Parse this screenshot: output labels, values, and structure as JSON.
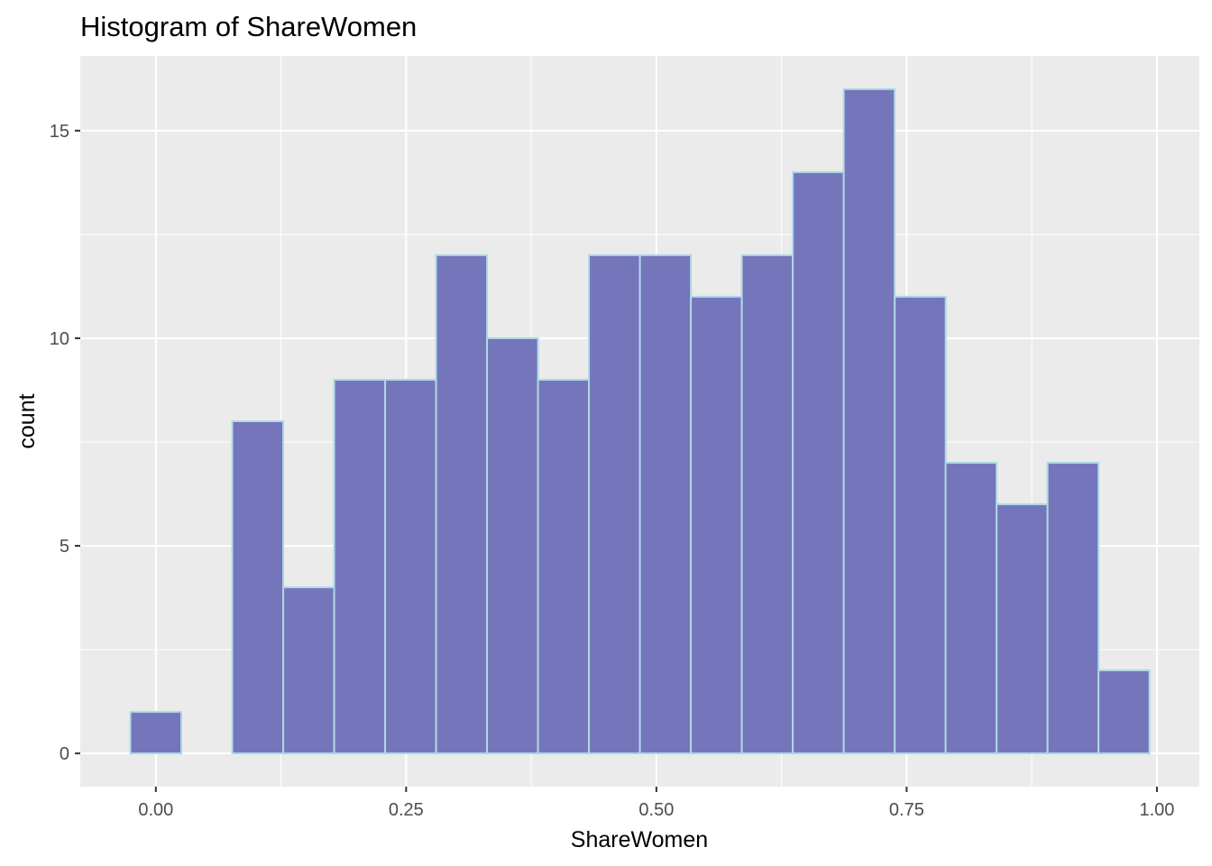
{
  "chart_data": {
    "type": "bar",
    "subtype": "histogram",
    "title": "Histogram of ShareWomen",
    "xlabel": "ShareWomen",
    "ylabel": "count",
    "bin_width": 0.0509,
    "bins": [
      {
        "center": 0.0,
        "count": 1
      },
      {
        "center": 0.0509,
        "count": 0
      },
      {
        "center": 0.1018,
        "count": 8
      },
      {
        "center": 0.1527,
        "count": 4
      },
      {
        "center": 0.2036,
        "count": 9
      },
      {
        "center": 0.2545,
        "count": 9
      },
      {
        "center": 0.3054,
        "count": 12
      },
      {
        "center": 0.3563,
        "count": 10
      },
      {
        "center": 0.4072,
        "count": 9
      },
      {
        "center": 0.4581,
        "count": 12
      },
      {
        "center": 0.509,
        "count": 12
      },
      {
        "center": 0.5599,
        "count": 11
      },
      {
        "center": 0.6108,
        "count": 12
      },
      {
        "center": 0.6617,
        "count": 14
      },
      {
        "center": 0.7126,
        "count": 16
      },
      {
        "center": 0.7635,
        "count": 11
      },
      {
        "center": 0.8144,
        "count": 7
      },
      {
        "center": 0.8653,
        "count": 6
      },
      {
        "center": 0.9162,
        "count": 7
      },
      {
        "center": 0.9671,
        "count": 2
      }
    ],
    "xlim": [
      -0.0755,
      1.0424
    ],
    "ylim": [
      -0.8,
      16.8
    ],
    "x_ticks": [
      0.0,
      0.25,
      0.5,
      0.75,
      1.0
    ],
    "x_tick_labels": [
      "0.00",
      "0.25",
      "0.50",
      "0.75",
      "1.00"
    ],
    "y_ticks": [
      0,
      5,
      10,
      15
    ],
    "y_tick_labels": [
      "0",
      "5",
      "10",
      "15"
    ],
    "grid": true,
    "colors": {
      "panel_background": "#ebebeb",
      "grid_major": "#ffffff",
      "bar_fill": "#7575bb",
      "bar_outline": "#add8e6"
    }
  }
}
